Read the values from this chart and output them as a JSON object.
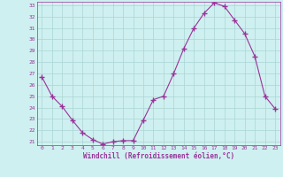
{
  "x": [
    0,
    1,
    2,
    3,
    4,
    5,
    6,
    7,
    8,
    9,
    10,
    11,
    12,
    13,
    14,
    15,
    16,
    17,
    18,
    19,
    20,
    21,
    22,
    23
  ],
  "y": [
    26.7,
    25.0,
    24.1,
    22.9,
    21.8,
    21.2,
    20.8,
    21.0,
    21.1,
    21.1,
    22.9,
    24.7,
    25.0,
    27.0,
    29.2,
    31.0,
    32.3,
    33.2,
    32.9,
    31.7,
    30.5,
    28.5,
    25.0,
    23.9
  ],
  "line_color": "#993399",
  "marker": "+",
  "marker_size": 4,
  "background_color": "#cff0f0",
  "grid_color": "#aad4d4",
  "xlabel": "Windchill (Refroidissement éolien,°C)",
  "xlabel_color": "#993399",
  "tick_color": "#993399",
  "ylim": [
    21,
    33
  ],
  "xlim": [
    -0.5,
    23.5
  ],
  "yticks": [
    21,
    22,
    23,
    24,
    25,
    26,
    27,
    28,
    29,
    30,
    31,
    32,
    33
  ],
  "xticks": [
    0,
    1,
    2,
    3,
    4,
    5,
    6,
    7,
    8,
    9,
    10,
    11,
    12,
    13,
    14,
    15,
    16,
    17,
    18,
    19,
    20,
    21,
    22,
    23
  ],
  "figsize": [
    3.2,
    2.0
  ],
  "dpi": 100
}
